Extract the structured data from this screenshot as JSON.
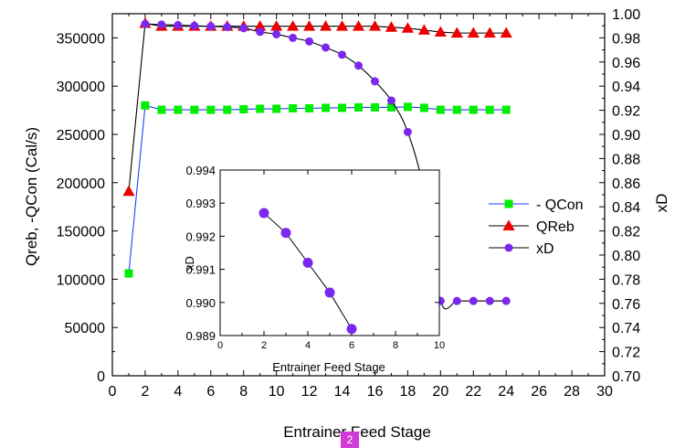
{
  "chart_data": {
    "type": "line",
    "title": "",
    "xlabel": "Entrainer Feed Stage",
    "ylabel_left": "Qreb, -QCon (Cal/s)",
    "ylabel_right": "xD",
    "xlim": [
      0,
      30
    ],
    "ylim_left": [
      0,
      375000
    ],
    "ylim_right": [
      0.7,
      1.0
    ],
    "x_ticks": [
      "0",
      "2",
      "4",
      "6",
      "8",
      "10",
      "12",
      "14",
      "16",
      "18",
      "20",
      "22",
      "24",
      "26",
      "28",
      "30"
    ],
    "y_left_ticks": [
      "0",
      "50000",
      "100000",
      "150000",
      "200000",
      "250000",
      "300000",
      "350000"
    ],
    "y_right_ticks": [
      "0.70",
      "0.72",
      "0.74",
      "0.76",
      "0.78",
      "0.80",
      "0.82",
      "0.84",
      "0.86",
      "0.88",
      "0.90",
      "0.92",
      "0.94",
      "0.96",
      "0.98",
      "1.00"
    ],
    "legend_position": "right",
    "series": [
      {
        "name": "- QCon",
        "axis": "left",
        "color": "#00ee00",
        "line_color": "#1f3fff",
        "marker": "square",
        "points": [
          [
            1,
            106000
          ],
          [
            2,
            280000
          ],
          [
            3,
            275500
          ],
          [
            4,
            275500
          ],
          [
            5,
            275500
          ],
          [
            6,
            275500
          ],
          [
            7,
            275500
          ],
          [
            8,
            276000
          ],
          [
            9,
            276500
          ],
          [
            10,
            276500
          ],
          [
            11,
            277000
          ],
          [
            12,
            277000
          ],
          [
            13,
            277500
          ],
          [
            14,
            277500
          ],
          [
            15,
            278000
          ],
          [
            16,
            278000
          ],
          [
            17,
            278000
          ],
          [
            18,
            278500
          ],
          [
            19,
            277500
          ],
          [
            20,
            275500
          ],
          [
            21,
            275500
          ],
          [
            22,
            275500
          ],
          [
            23,
            275500
          ],
          [
            24,
            275500
          ]
        ]
      },
      {
        "name": "QReb",
        "axis": "left",
        "color": "#ee0000",
        "line_color": "#000000",
        "marker": "triangle",
        "points": [
          [
            1,
            191000
          ],
          [
            2,
            365000
          ],
          [
            3,
            362000
          ],
          [
            4,
            362000
          ],
          [
            5,
            362000
          ],
          [
            6,
            362000
          ],
          [
            7,
            362000
          ],
          [
            8,
            362000
          ],
          [
            9,
            362000
          ],
          [
            10,
            362000
          ],
          [
            11,
            362000
          ],
          [
            12,
            362000
          ],
          [
            13,
            362000
          ],
          [
            14,
            362000
          ],
          [
            15,
            362000
          ],
          [
            16,
            362000
          ],
          [
            17,
            361000
          ],
          [
            18,
            360000
          ],
          [
            19,
            358000
          ],
          [
            20,
            356000
          ],
          [
            21,
            355000
          ],
          [
            22,
            355000
          ],
          [
            23,
            355000
          ],
          [
            24,
            355000
          ]
        ]
      },
      {
        "name": "xD",
        "axis": "right",
        "color": "#7a28f0",
        "line_color": "#000000",
        "marker": "circle",
        "points": [
          [
            2,
            0.9915
          ],
          [
            3,
            0.991
          ],
          [
            4,
            0.9905
          ],
          [
            5,
            0.99
          ],
          [
            6,
            0.9895
          ],
          [
            7,
            0.989
          ],
          [
            8,
            0.988
          ],
          [
            9,
            0.985
          ],
          [
            10,
            0.983
          ],
          [
            11,
            0.98
          ],
          [
            12,
            0.977
          ],
          [
            13,
            0.972
          ],
          [
            14,
            0.966
          ],
          [
            15,
            0.957
          ],
          [
            16,
            0.944
          ],
          [
            17,
            0.928
          ],
          [
            18,
            0.902
          ],
          [
            19,
            0.852
          ],
          [
            20,
            0.762
          ],
          [
            21,
            0.762
          ],
          [
            22,
            0.762
          ],
          [
            23,
            0.762
          ],
          [
            24,
            0.762
          ]
        ]
      }
    ],
    "inset": {
      "xlabel": "Entrainer Feed Stage",
      "ylabel": "xD",
      "xlim": [
        0,
        10
      ],
      "ylim": [
        0.989,
        0.994
      ],
      "x_ticks": [
        "0",
        "2",
        "4",
        "6",
        "8",
        "10"
      ],
      "y_ticks": [
        "0.989",
        "0.990",
        "0.991",
        "0.992",
        "0.993",
        "0.994"
      ],
      "series": [
        {
          "name": "xD",
          "color": "#7a28f0",
          "marker": "circle",
          "points": [
            [
              2,
              0.9927
            ],
            [
              3,
              0.9921
            ],
            [
              4,
              0.9912
            ],
            [
              5,
              0.9903
            ],
            [
              6,
              0.9892
            ]
          ]
        }
      ]
    }
  },
  "page_badge": "2"
}
